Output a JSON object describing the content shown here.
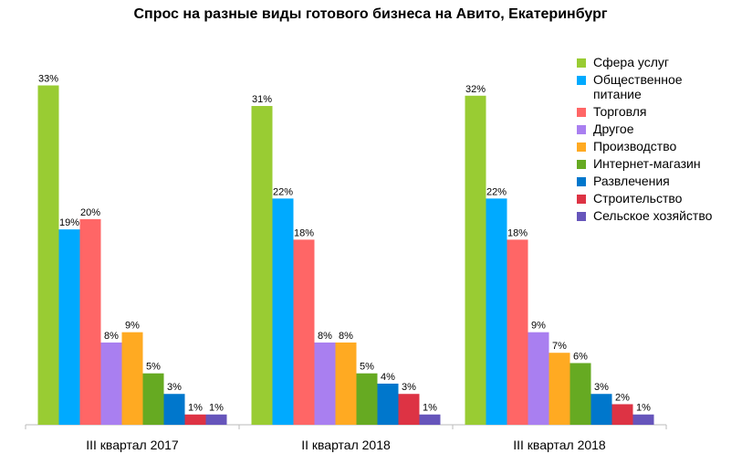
{
  "chart_data": {
    "type": "bar",
    "title": "Спрос на разные виды готового бизнеса на Авито, Екатеринбург",
    "categories": [
      "III квартал 2017",
      "II квартал 2018",
      "III квартал 2018"
    ],
    "ylim": [
      0,
      35
    ],
    "legend": "right",
    "series": [
      {
        "name": "Сфера услуг",
        "color": "#99cc33",
        "values": [
          33,
          31,
          32
        ],
        "value_labels": [
          "33%",
          "31%",
          "32%"
        ]
      },
      {
        "name": "Общественное\nпитание",
        "color": "#00aaff",
        "values": [
          19,
          22,
          22
        ],
        "value_labels": [
          "19%",
          "22%",
          "22%"
        ]
      },
      {
        "name": "Торговля",
        "color": "#ff6666",
        "values": [
          20,
          18,
          18
        ],
        "value_labels": [
          "20%",
          "18%",
          "18%"
        ]
      },
      {
        "name": "Другое",
        "color": "#a97ff0",
        "values": [
          8,
          8,
          9
        ],
        "value_labels": [
          "8%",
          "8%",
          "9%"
        ]
      },
      {
        "name": "Производство",
        "color": "#ffaa22",
        "values": [
          9,
          8,
          7
        ],
        "value_labels": [
          "9%",
          "8%",
          "7%"
        ]
      },
      {
        "name": "Интернет-магазин",
        "color": "#66aa22",
        "values": [
          5,
          5,
          6
        ],
        "value_labels": [
          "5%",
          "5%",
          "6%"
        ]
      },
      {
        "name": "Развлечения",
        "color": "#0077cc",
        "values": [
          3,
          4,
          3
        ],
        "value_labels": [
          "3%",
          "4%",
          "3%"
        ]
      },
      {
        "name": "Строительство",
        "color": "#dd3344",
        "values": [
          1,
          3,
          2
        ],
        "value_labels": [
          "1%",
          "3%",
          "2%"
        ]
      },
      {
        "name": "Сельское хозяйство",
        "color": "#6655bb",
        "values": [
          1,
          1,
          1
        ],
        "value_labels": [
          "1%",
          "1%",
          "1%"
        ]
      }
    ]
  }
}
